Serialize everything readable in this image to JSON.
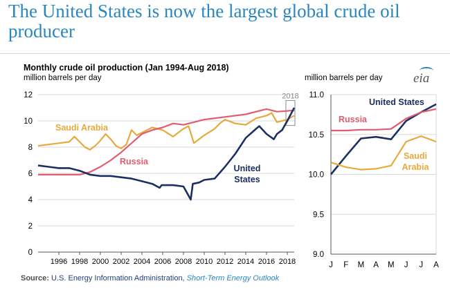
{
  "headline": "The United States is now the largest global crude oil producer",
  "source": {
    "label": "Source:",
    "agency": "U.S. Energy Information Administration,",
    "link": "Short-Term Energy Outlook"
  },
  "logo_text": "eia",
  "colors": {
    "united_states": "#1b2f63",
    "russia": "#e05c6e",
    "saudi_arabia": "#e8a93c",
    "headline": "#2a86bf",
    "grid": "#d9d9d9"
  },
  "chart_data": [
    {
      "type": "line",
      "title": "Monthly crude oil production (Jan 1994-Aug 2018)",
      "ylabel": "million barrels per day",
      "xlim": [
        1994.0,
        2018.67
      ],
      "ylim": [
        0,
        12
      ],
      "yticks": [
        0,
        2,
        4,
        6,
        8,
        10,
        12
      ],
      "xticks": [
        "1996",
        "1998",
        "2000",
        "2002",
        "2004",
        "2006",
        "2008",
        "2010",
        "2012",
        "2014",
        "2016",
        "2018"
      ],
      "grid": true,
      "annotation": "2018",
      "series": [
        {
          "name": "Saudi Arabia",
          "x": [
            1994.0,
            1995.0,
            1996.0,
            1997.0,
            1997.5,
            1998.0,
            1998.5,
            1999.0,
            1999.5,
            2000.0,
            2000.5,
            2001.0,
            2001.5,
            2002.0,
            2002.5,
            2003.0,
            2003.5,
            2004.0,
            2005.0,
            2006.0,
            2007.0,
            2008.0,
            2008.5,
            2009.0,
            2009.5,
            2010.0,
            2011.0,
            2011.5,
            2012.0,
            2013.0,
            2014.0,
            2015.0,
            2016.0,
            2016.5,
            2017.0,
            2018.0,
            2018.67
          ],
          "values": [
            8.1,
            8.2,
            8.3,
            8.4,
            8.8,
            8.4,
            8.0,
            7.8,
            8.1,
            8.5,
            9.0,
            8.6,
            8.1,
            7.9,
            8.2,
            9.3,
            8.9,
            9.1,
            9.5,
            9.3,
            8.8,
            9.4,
            9.6,
            8.3,
            8.6,
            8.9,
            9.4,
            9.8,
            10.1,
            9.8,
            9.7,
            10.2,
            10.4,
            10.6,
            9.9,
            10.1,
            10.4
          ]
        },
        {
          "name": "Russia",
          "x": [
            1994.0,
            1996.0,
            1998.0,
            1999.0,
            2000.0,
            2001.0,
            2002.0,
            2003.0,
            2004.0,
            2005.0,
            2006.0,
            2007.0,
            2008.0,
            2009.0,
            2010.0,
            2012.0,
            2014.0,
            2016.0,
            2017.0,
            2018.67
          ],
          "values": [
            5.9,
            5.9,
            5.9,
            6.1,
            6.5,
            7.0,
            7.6,
            8.3,
            9.0,
            9.3,
            9.5,
            9.8,
            9.7,
            9.9,
            10.1,
            10.3,
            10.5,
            10.9,
            10.7,
            10.8
          ]
        },
        {
          "name": "United States",
          "x": [
            1994.0,
            1995.0,
            1996.0,
            1997.0,
            1998.0,
            1999.0,
            2000.0,
            2001.0,
            2002.0,
            2003.0,
            2004.0,
            2005.0,
            2005.7,
            2005.9,
            2006.5,
            2007.0,
            2008.0,
            2008.7,
            2008.9,
            2009.5,
            2010.0,
            2011.0,
            2012.0,
            2013.0,
            2014.0,
            2015.0,
            2015.3,
            2016.0,
            2016.7,
            2017.0,
            2017.5,
            2018.0,
            2018.67
          ],
          "values": [
            6.6,
            6.5,
            6.4,
            6.4,
            6.2,
            5.9,
            5.8,
            5.8,
            5.7,
            5.6,
            5.4,
            5.2,
            4.9,
            5.1,
            5.1,
            5.1,
            5.0,
            4.0,
            5.2,
            5.3,
            5.5,
            5.6,
            6.5,
            7.5,
            8.7,
            9.4,
            9.6,
            9.0,
            8.6,
            9.0,
            9.3,
            10.0,
            11.0
          ]
        }
      ]
    },
    {
      "type": "line",
      "ylabel": "million barrels per day",
      "categories": [
        "J",
        "F",
        "M",
        "A",
        "M",
        "J",
        "J",
        "A"
      ],
      "ylim": [
        9.0,
        11.0
      ],
      "yticks": [
        "9.0",
        "9.5",
        "10.0",
        "10.5",
        "11.0"
      ],
      "grid": true,
      "series": [
        {
          "name": "United States",
          "values": [
            10.0,
            10.23,
            10.45,
            10.47,
            10.44,
            10.67,
            10.78,
            10.88
          ]
        },
        {
          "name": "Russia",
          "values": [
            10.55,
            10.55,
            10.56,
            10.56,
            10.57,
            10.7,
            10.78,
            10.82
          ]
        },
        {
          "name": "Saudi Arabia",
          "values": [
            10.15,
            10.09,
            10.06,
            10.07,
            10.11,
            10.41,
            10.48,
            10.41
          ]
        }
      ],
      "labels": {
        "united_states": "United States",
        "russia": "Russia",
        "saudi_line1": "Saudi",
        "saudi_line2": "Arabia"
      }
    }
  ],
  "main_labels": {
    "saudi": "Saudi Arabia",
    "russia": "Russia",
    "us_line1": "United",
    "us_line2": "States"
  }
}
